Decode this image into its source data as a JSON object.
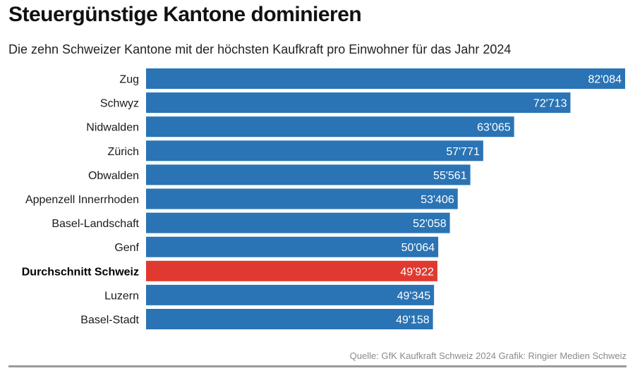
{
  "chart_data": {
    "type": "bar",
    "orientation": "horizontal",
    "title": "Steuergünstige Kantone dominieren",
    "subtitle": "Die zehn Schweizer Kantone mit der höchsten Kaufkraft pro Einwohner für das Jahr 2024",
    "categories": [
      "Zug",
      "Schwyz",
      "Nidwalden",
      "Zürich",
      "Obwalden",
      "Appenzell Innerrhoden",
      "Basel-Landschaft",
      "Genf",
      "Durchschnitt Schweiz",
      "Luzern",
      "Basel-Stadt"
    ],
    "values": [
      82084,
      72713,
      63065,
      57771,
      55561,
      53406,
      52058,
      50064,
      49922,
      49345,
      49158
    ],
    "value_labels": [
      "82'084",
      "72'713",
      "63'065",
      "57'771",
      "55'561",
      "53'406",
      "52'058",
      "50'064",
      "49'922",
      "49'345",
      "49'158"
    ],
    "highlight_category": "Durchschnitt Schweiz",
    "colors": {
      "bar": "#2a74b5",
      "highlight": "#e03a30"
    },
    "xlim": [
      0,
      82084
    ],
    "xlabel": "",
    "ylabel": "",
    "grid": false,
    "source": "Quelle: GfK Kaufkraft Schweiz 2024 Grafik: Ringier Medien Schweiz"
  }
}
